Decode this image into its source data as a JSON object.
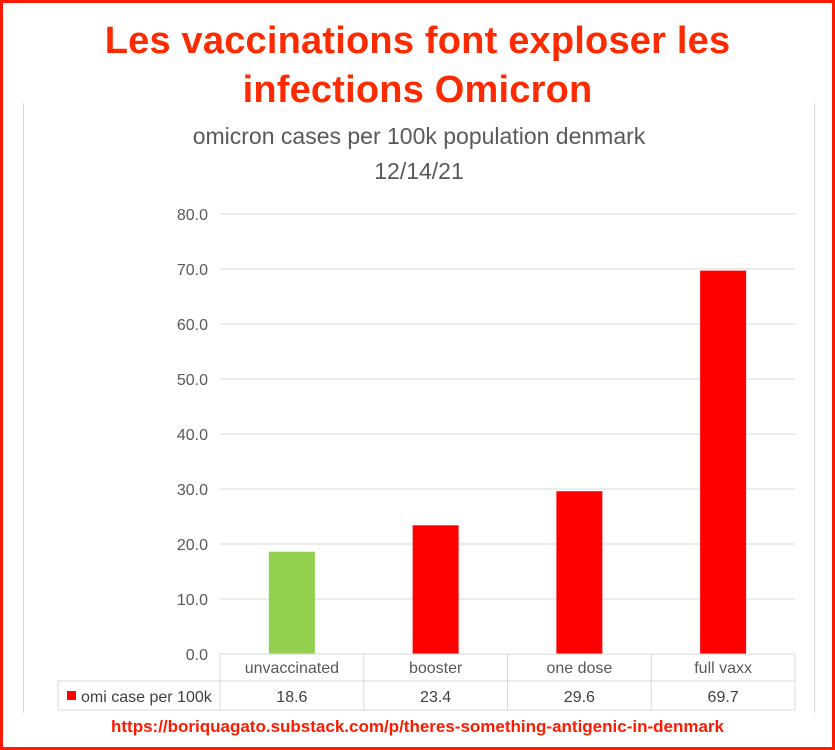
{
  "headline": {
    "line1": "Les vaccinations font exploser les",
    "line2": "infections Omicron"
  },
  "footer_url": "https://boriquagato.substack.com/p/theres-something-antigenic-in-denmark",
  "chart_data": {
    "type": "bar",
    "title": "omicron cases per 100k population denmark",
    "subtitle": "12/14/21",
    "categories": [
      "unvaccinated",
      "booster",
      "one dose",
      "full vaxx"
    ],
    "series": [
      {
        "name": "omi case per 100k",
        "values": [
          18.6,
          23.4,
          29.6,
          69.7
        ],
        "value_labels": [
          "18.6",
          "23.4",
          "29.6",
          "69.7"
        ],
        "colors": [
          "#92d050",
          "#ff0000",
          "#ff0000",
          "#ff0000"
        ],
        "legend_color": "#ff0000"
      }
    ],
    "ylim": [
      0,
      80
    ],
    "yticks": [
      0,
      10,
      20,
      30,
      40,
      50,
      60,
      70,
      80
    ],
    "ytick_labels": [
      "0.0",
      "10.0",
      "20.0",
      "30.0",
      "40.0",
      "50.0",
      "60.0",
      "70.0",
      "80.0"
    ],
    "grid": true,
    "data_table": true
  }
}
